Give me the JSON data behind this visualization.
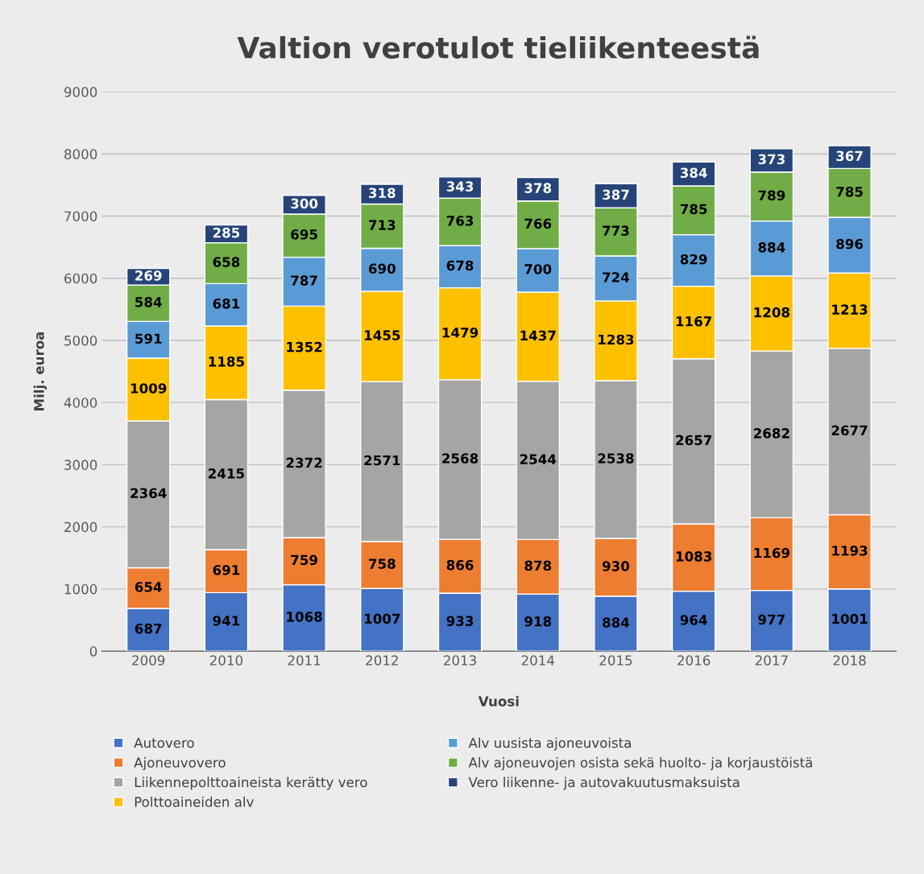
{
  "chart_data": {
    "type": "bar",
    "title": "Valtion verotulot tieliikenteestä",
    "xlabel": "Vuosi",
    "ylabel": "Milj. euroa",
    "categories": [
      "2009",
      "2010",
      "2011",
      "2012",
      "2013",
      "2014",
      "2015",
      "2016",
      "2017",
      "2018"
    ],
    "stacked": true,
    "data_labels": true,
    "grid": "y",
    "legend": "bottom",
    "ylim": [
      0,
      9000
    ],
    "yticks": [
      0,
      1000,
      2000,
      3000,
      4000,
      5000,
      6000,
      7000,
      8000,
      9000
    ],
    "series": [
      {
        "name": "Autovero",
        "color": "#4472c4",
        "values": [
          687,
          941,
          1068,
          1007,
          933,
          918,
          884,
          964,
          977,
          1001
        ]
      },
      {
        "name": "Ajoneuvovero",
        "color": "#ed7d31",
        "values": [
          654,
          691,
          759,
          758,
          866,
          878,
          930,
          1083,
          1169,
          1193
        ]
      },
      {
        "name": "Liikennepolttoaineista kerätty vero",
        "color": "#a5a5a5",
        "values": [
          2364,
          2415,
          2372,
          2571,
          2568,
          2544,
          2538,
          2657,
          2682,
          2677
        ]
      },
      {
        "name": "Polttoaineiden alv",
        "color": "#ffc000",
        "values": [
          1009,
          1185,
          1352,
          1455,
          1479,
          1437,
          1283,
          1167,
          1208,
          1213
        ]
      },
      {
        "name": "Alv uusista ajoneuvoista",
        "color": "#5b9bd5",
        "values": [
          591,
          681,
          787,
          690,
          678,
          700,
          724,
          829,
          884,
          896
        ]
      },
      {
        "name": "Alv ajoneuvojen osista sekä huolto- ja korjaustöistä",
        "color": "#70ad47",
        "values": [
          584,
          658,
          695,
          713,
          763,
          766,
          773,
          785,
          789,
          785
        ]
      },
      {
        "name": "Vero liikenne- ja autovakuutusmaksuista",
        "color": "#264478",
        "values": [
          269,
          285,
          300,
          318,
          343,
          378,
          387,
          384,
          373,
          367
        ]
      }
    ]
  }
}
